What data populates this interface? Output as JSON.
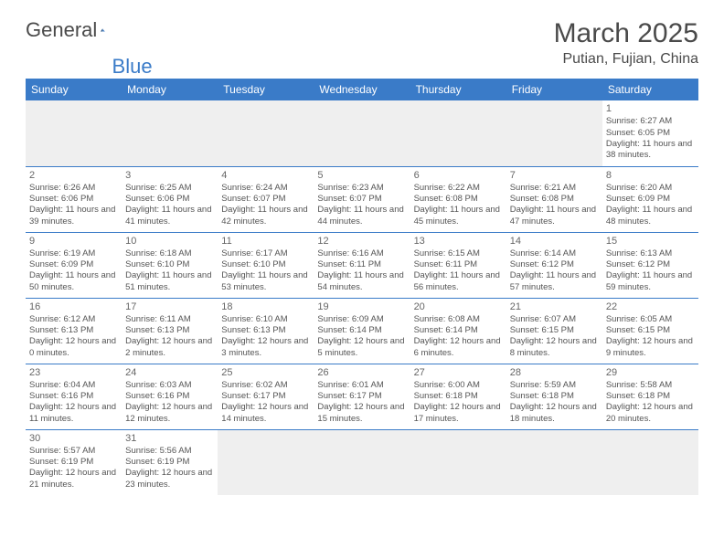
{
  "brand": {
    "part1": "General",
    "part2": "Blue"
  },
  "title": "March 2025",
  "location": "Putian, Fujian, China",
  "colors": {
    "header_bg": "#3a7bc8",
    "header_fg": "#ffffff",
    "border": "#3a7bc8",
    "text": "#555555",
    "blank_bg": "#efefef"
  },
  "weekdays": [
    "Sunday",
    "Monday",
    "Tuesday",
    "Wednesday",
    "Thursday",
    "Friday",
    "Saturday"
  ],
  "weeks": [
    [
      null,
      null,
      null,
      null,
      null,
      null,
      {
        "d": "1",
        "sr": "Sunrise: 6:27 AM",
        "ss": "Sunset: 6:05 PM",
        "dl": "Daylight: 11 hours and 38 minutes."
      }
    ],
    [
      {
        "d": "2",
        "sr": "Sunrise: 6:26 AM",
        "ss": "Sunset: 6:06 PM",
        "dl": "Daylight: 11 hours and 39 minutes."
      },
      {
        "d": "3",
        "sr": "Sunrise: 6:25 AM",
        "ss": "Sunset: 6:06 PM",
        "dl": "Daylight: 11 hours and 41 minutes."
      },
      {
        "d": "4",
        "sr": "Sunrise: 6:24 AM",
        "ss": "Sunset: 6:07 PM",
        "dl": "Daylight: 11 hours and 42 minutes."
      },
      {
        "d": "5",
        "sr": "Sunrise: 6:23 AM",
        "ss": "Sunset: 6:07 PM",
        "dl": "Daylight: 11 hours and 44 minutes."
      },
      {
        "d": "6",
        "sr": "Sunrise: 6:22 AM",
        "ss": "Sunset: 6:08 PM",
        "dl": "Daylight: 11 hours and 45 minutes."
      },
      {
        "d": "7",
        "sr": "Sunrise: 6:21 AM",
        "ss": "Sunset: 6:08 PM",
        "dl": "Daylight: 11 hours and 47 minutes."
      },
      {
        "d": "8",
        "sr": "Sunrise: 6:20 AM",
        "ss": "Sunset: 6:09 PM",
        "dl": "Daylight: 11 hours and 48 minutes."
      }
    ],
    [
      {
        "d": "9",
        "sr": "Sunrise: 6:19 AM",
        "ss": "Sunset: 6:09 PM",
        "dl": "Daylight: 11 hours and 50 minutes."
      },
      {
        "d": "10",
        "sr": "Sunrise: 6:18 AM",
        "ss": "Sunset: 6:10 PM",
        "dl": "Daylight: 11 hours and 51 minutes."
      },
      {
        "d": "11",
        "sr": "Sunrise: 6:17 AM",
        "ss": "Sunset: 6:10 PM",
        "dl": "Daylight: 11 hours and 53 minutes."
      },
      {
        "d": "12",
        "sr": "Sunrise: 6:16 AM",
        "ss": "Sunset: 6:11 PM",
        "dl": "Daylight: 11 hours and 54 minutes."
      },
      {
        "d": "13",
        "sr": "Sunrise: 6:15 AM",
        "ss": "Sunset: 6:11 PM",
        "dl": "Daylight: 11 hours and 56 minutes."
      },
      {
        "d": "14",
        "sr": "Sunrise: 6:14 AM",
        "ss": "Sunset: 6:12 PM",
        "dl": "Daylight: 11 hours and 57 minutes."
      },
      {
        "d": "15",
        "sr": "Sunrise: 6:13 AM",
        "ss": "Sunset: 6:12 PM",
        "dl": "Daylight: 11 hours and 59 minutes."
      }
    ],
    [
      {
        "d": "16",
        "sr": "Sunrise: 6:12 AM",
        "ss": "Sunset: 6:13 PM",
        "dl": "Daylight: 12 hours and 0 minutes."
      },
      {
        "d": "17",
        "sr": "Sunrise: 6:11 AM",
        "ss": "Sunset: 6:13 PM",
        "dl": "Daylight: 12 hours and 2 minutes."
      },
      {
        "d": "18",
        "sr": "Sunrise: 6:10 AM",
        "ss": "Sunset: 6:13 PM",
        "dl": "Daylight: 12 hours and 3 minutes."
      },
      {
        "d": "19",
        "sr": "Sunrise: 6:09 AM",
        "ss": "Sunset: 6:14 PM",
        "dl": "Daylight: 12 hours and 5 minutes."
      },
      {
        "d": "20",
        "sr": "Sunrise: 6:08 AM",
        "ss": "Sunset: 6:14 PM",
        "dl": "Daylight: 12 hours and 6 minutes."
      },
      {
        "d": "21",
        "sr": "Sunrise: 6:07 AM",
        "ss": "Sunset: 6:15 PM",
        "dl": "Daylight: 12 hours and 8 minutes."
      },
      {
        "d": "22",
        "sr": "Sunrise: 6:05 AM",
        "ss": "Sunset: 6:15 PM",
        "dl": "Daylight: 12 hours and 9 minutes."
      }
    ],
    [
      {
        "d": "23",
        "sr": "Sunrise: 6:04 AM",
        "ss": "Sunset: 6:16 PM",
        "dl": "Daylight: 12 hours and 11 minutes."
      },
      {
        "d": "24",
        "sr": "Sunrise: 6:03 AM",
        "ss": "Sunset: 6:16 PM",
        "dl": "Daylight: 12 hours and 12 minutes."
      },
      {
        "d": "25",
        "sr": "Sunrise: 6:02 AM",
        "ss": "Sunset: 6:17 PM",
        "dl": "Daylight: 12 hours and 14 minutes."
      },
      {
        "d": "26",
        "sr": "Sunrise: 6:01 AM",
        "ss": "Sunset: 6:17 PM",
        "dl": "Daylight: 12 hours and 15 minutes."
      },
      {
        "d": "27",
        "sr": "Sunrise: 6:00 AM",
        "ss": "Sunset: 6:18 PM",
        "dl": "Daylight: 12 hours and 17 minutes."
      },
      {
        "d": "28",
        "sr": "Sunrise: 5:59 AM",
        "ss": "Sunset: 6:18 PM",
        "dl": "Daylight: 12 hours and 18 minutes."
      },
      {
        "d": "29",
        "sr": "Sunrise: 5:58 AM",
        "ss": "Sunset: 6:18 PM",
        "dl": "Daylight: 12 hours and 20 minutes."
      }
    ],
    [
      {
        "d": "30",
        "sr": "Sunrise: 5:57 AM",
        "ss": "Sunset: 6:19 PM",
        "dl": "Daylight: 12 hours and 21 minutes."
      },
      {
        "d": "31",
        "sr": "Sunrise: 5:56 AM",
        "ss": "Sunset: 6:19 PM",
        "dl": "Daylight: 12 hours and 23 minutes."
      },
      null,
      null,
      null,
      null,
      null
    ]
  ]
}
